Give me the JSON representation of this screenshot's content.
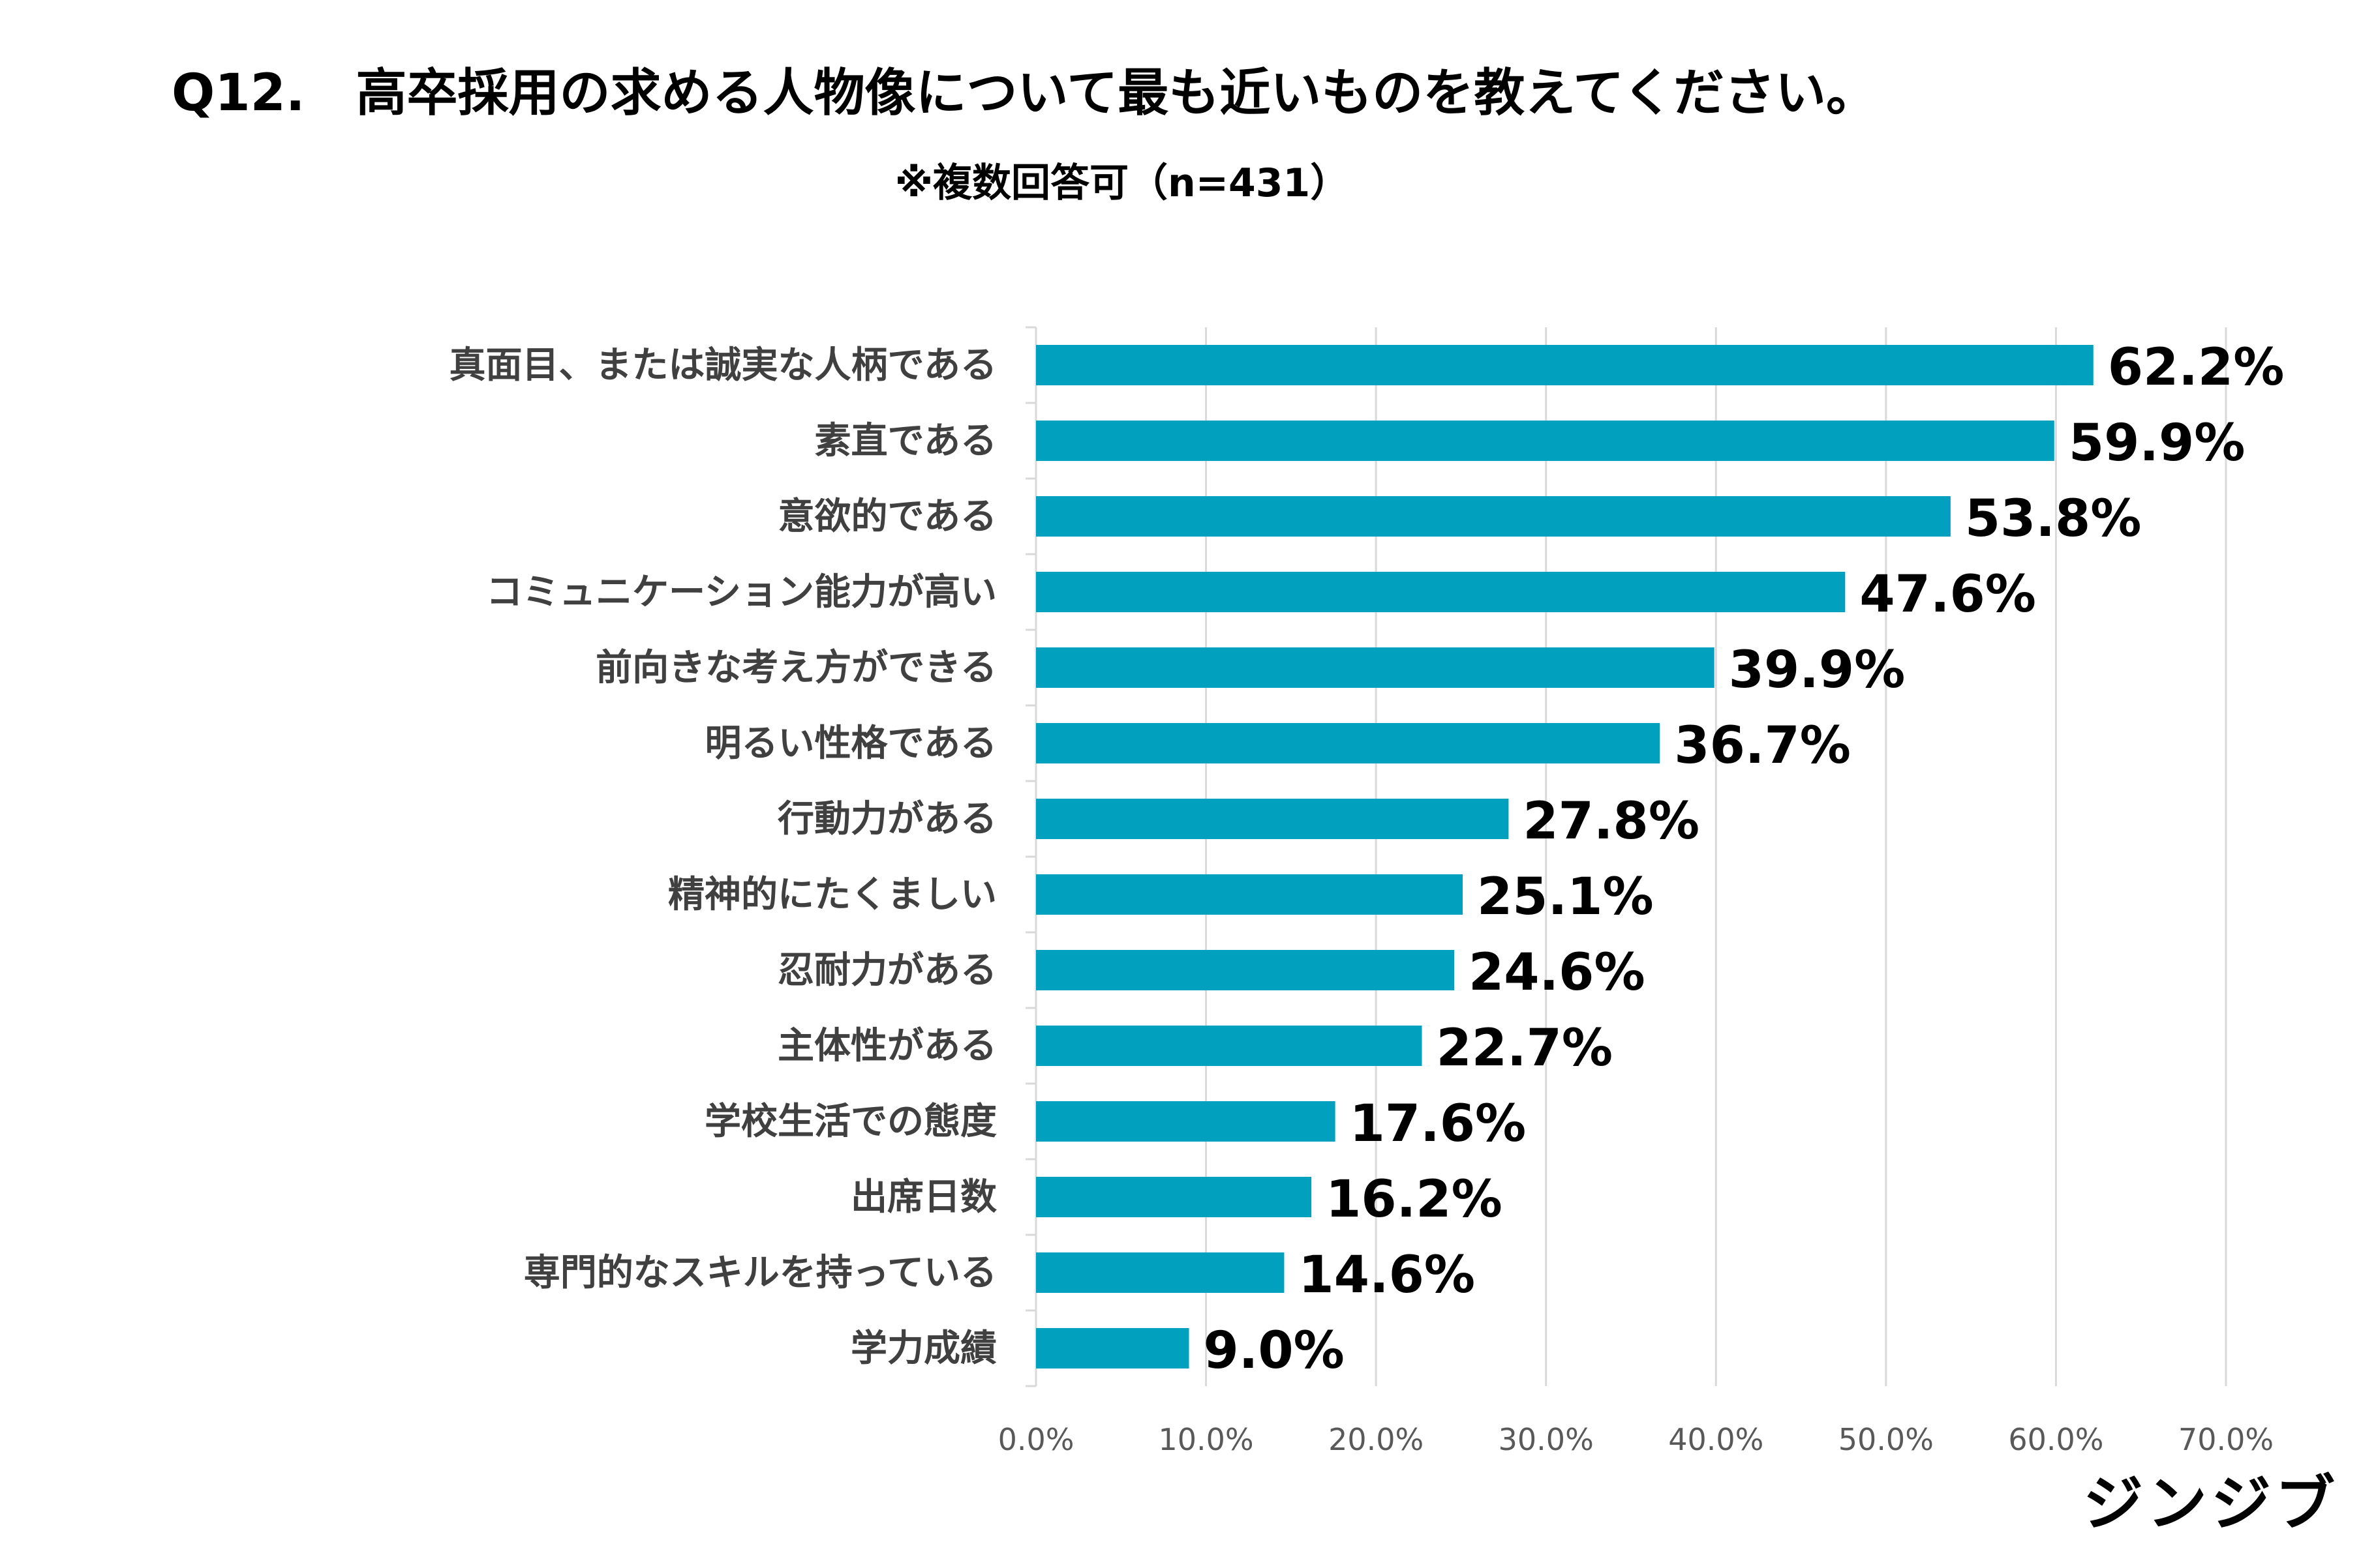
{
  "title": "Q12.　高卒採用の求める人物像について最も近いものを教えてください。",
  "subtitle": "※複数回答可（n=431）",
  "brand": "ジンジブ",
  "colors": {
    "bar": "#00A0BE",
    "grid": "#D9D9D9",
    "axis_text": "#595959",
    "category_text": "#404040",
    "value_text": "#000000"
  },
  "chart_data": {
    "type": "bar",
    "orientation": "horizontal",
    "categories": [
      "真面目、または誠実な人柄である",
      "素直である",
      "意欲的である",
      "コミュニケーション能力が高い",
      "前向きな考え方ができる",
      "明るい性格である",
      "行動力がある",
      "精神的にたくましい",
      "忍耐力がある",
      "主体性がある",
      "学校生活での態度",
      "出席日数",
      "専門的なスキルを持っている",
      "学力成績"
    ],
    "values": [
      62.2,
      59.9,
      53.8,
      47.6,
      39.9,
      36.7,
      27.8,
      25.1,
      24.6,
      22.7,
      17.6,
      16.2,
      14.6,
      9.0
    ],
    "data_labels": [
      "62.2%",
      "59.9%",
      "53.8%",
      "47.6%",
      "39.9%",
      "36.7%",
      "27.8%",
      "25.1%",
      "24.6%",
      "22.7%",
      "17.6%",
      "16.2%",
      "14.6%",
      "9.0%"
    ],
    "x_ticks": [
      0,
      10,
      20,
      30,
      40,
      50,
      60,
      70
    ],
    "x_tick_labels": [
      "0.0%",
      "10.0%",
      "20.0%",
      "30.0%",
      "40.0%",
      "50.0%",
      "60.0%",
      "70.0%"
    ],
    "xlim": [
      0,
      70
    ],
    "grid": true,
    "legend": false
  }
}
